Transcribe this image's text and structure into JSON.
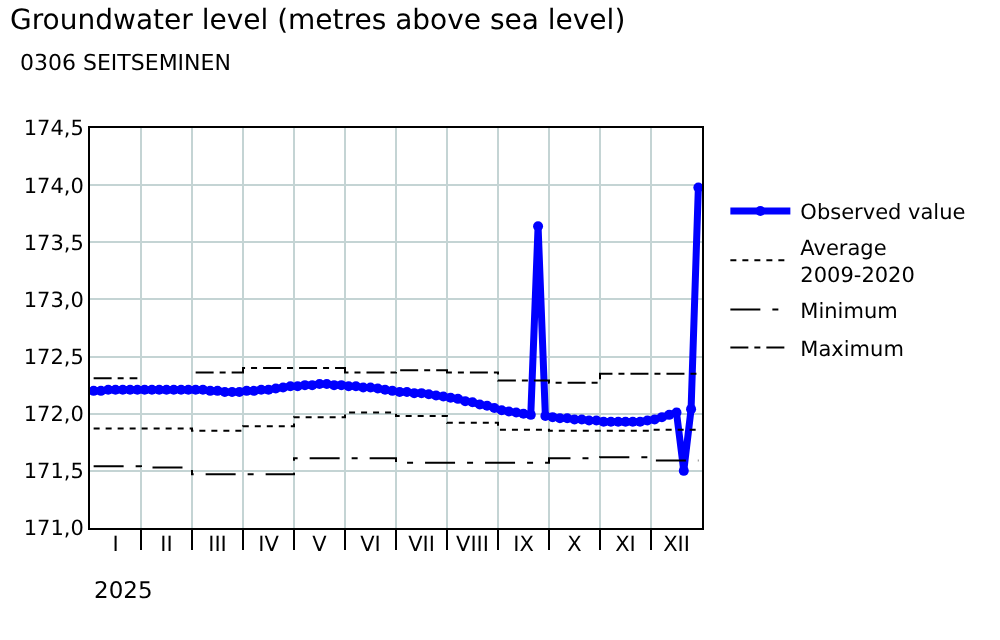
{
  "chart_data": {
    "type": "line",
    "title": "Groundwater level (metres above sea level)",
    "subtitle": "0306 SEITSEMINEN",
    "xlabel": "2025",
    "categories": [
      null,
      null,
      null,
      "I",
      null,
      null,
      null,
      null,
      null,
      null,
      "II",
      null,
      null,
      null,
      null,
      null,
      null,
      "III",
      null,
      null,
      null,
      null,
      null,
      null,
      "IV",
      null,
      null,
      null,
      null,
      null,
      null,
      "V",
      null,
      null,
      null,
      null,
      null,
      null,
      "VI",
      null,
      null,
      null,
      null,
      null,
      null,
      "VII",
      null,
      null,
      null,
      null,
      null,
      null,
      "VIII",
      null,
      null,
      null,
      null,
      null,
      null,
      "IX",
      null,
      null,
      null,
      null,
      null,
      null,
      "X",
      null,
      null,
      null,
      null,
      null,
      null,
      "XI",
      null,
      null,
      null,
      null,
      null,
      null,
      "XII",
      null,
      null,
      null
    ],
    "series": [
      {
        "name": "Observed value",
        "color": "#0000ff",
        "marker": "circle",
        "line_style": "solid",
        "values": [
          172.2,
          172.2,
          172.21,
          172.21,
          172.21,
          172.21,
          172.21,
          172.21,
          172.21,
          172.21,
          172.21,
          172.21,
          172.21,
          172.21,
          172.21,
          172.21,
          172.2,
          172.2,
          172.19,
          172.19,
          172.19,
          172.2,
          172.2,
          172.21,
          172.21,
          172.22,
          172.23,
          172.24,
          172.24,
          172.25,
          172.25,
          172.26,
          172.26,
          172.25,
          172.25,
          172.24,
          172.24,
          172.23,
          172.23,
          172.22,
          172.21,
          172.2,
          172.19,
          172.19,
          172.18,
          172.18,
          172.17,
          172.16,
          172.15,
          172.14,
          172.13,
          172.11,
          172.1,
          172.08,
          172.07,
          172.05,
          172.03,
          172.02,
          172.01,
          172.0,
          171.99,
          173.64,
          171.98,
          171.97,
          171.96,
          171.96,
          171.95,
          171.95,
          171.94,
          171.94,
          171.93,
          171.93,
          171.93,
          171.93,
          171.93,
          171.93,
          171.94,
          171.95,
          171.97,
          171.99,
          172.01,
          171.5,
          172.04,
          173.98
        ]
      },
      {
        "name": "Average 2009-2020",
        "type": "step",
        "color": "#000000",
        "marker": "none",
        "line_style": "dotted",
        "values": [
          171.87,
          171.87,
          171.87,
          171.87,
          171.87,
          171.87,
          171.87,
          171.87,
          171.87,
          171.87,
          171.87,
          171.87,
          171.87,
          171.87,
          171.85,
          171.85,
          171.85,
          171.85,
          171.85,
          171.85,
          171.85,
          171.89,
          171.89,
          171.89,
          171.89,
          171.89,
          171.89,
          171.89,
          171.97,
          171.97,
          171.97,
          171.97,
          171.97,
          171.97,
          171.97,
          172.01,
          172.01,
          172.01,
          172.01,
          172.01,
          172.01,
          172.01,
          171.98,
          171.98,
          171.98,
          171.98,
          171.98,
          171.98,
          171.98,
          171.92,
          171.92,
          171.92,
          171.92,
          171.92,
          171.92,
          171.92,
          171.86,
          171.86,
          171.86,
          171.86,
          171.86,
          171.86,
          171.86,
          171.85,
          171.85,
          171.85,
          171.85,
          171.85,
          171.85,
          171.85,
          171.85,
          171.85,
          171.85,
          171.85,
          171.85,
          171.85,
          171.85,
          171.86,
          171.86,
          171.86,
          171.86,
          171.86,
          171.86,
          171.86
        ]
      },
      {
        "name": "Minimum",
        "type": "step",
        "color": "#000000",
        "marker": "none",
        "line_style": "longdashdot",
        "values": [
          171.54,
          171.54,
          171.54,
          171.54,
          171.54,
          171.54,
          171.54,
          171.53,
          171.53,
          171.53,
          171.53,
          171.53,
          171.53,
          171.53,
          171.47,
          171.47,
          171.47,
          171.47,
          171.47,
          171.47,
          171.47,
          171.47,
          171.47,
          171.47,
          171.47,
          171.47,
          171.47,
          171.47,
          171.61,
          171.61,
          171.61,
          171.61,
          171.61,
          171.61,
          171.61,
          171.61,
          171.61,
          171.61,
          171.61,
          171.61,
          171.61,
          171.61,
          171.57,
          171.57,
          171.57,
          171.57,
          171.57,
          171.57,
          171.57,
          171.57,
          171.57,
          171.57,
          171.57,
          171.57,
          171.57,
          171.57,
          171.57,
          171.57,
          171.57,
          171.57,
          171.57,
          171.57,
          171.57,
          171.61,
          171.61,
          171.61,
          171.61,
          171.61,
          171.61,
          171.61,
          171.62,
          171.62,
          171.62,
          171.62,
          171.62,
          171.62,
          171.62,
          171.59,
          171.59,
          171.59,
          171.59,
          171.59,
          171.59,
          171.59
        ]
      },
      {
        "name": "Maximum",
        "type": "step",
        "color": "#000000",
        "marker": "none",
        "line_style": "dashdot",
        "values": [
          172.31,
          172.31,
          172.31,
          172.31,
          172.31,
          172.31,
          172.31,
          null,
          null,
          null,
          null,
          null,
          null,
          null,
          172.36,
          172.36,
          172.36,
          172.36,
          172.36,
          172.36,
          172.36,
          172.4,
          172.4,
          172.4,
          172.4,
          172.4,
          172.4,
          172.4,
          172.4,
          172.4,
          172.4,
          172.4,
          172.4,
          172.4,
          172.4,
          172.36,
          172.36,
          172.36,
          172.36,
          172.36,
          172.36,
          172.36,
          172.38,
          172.38,
          172.38,
          172.38,
          172.38,
          172.38,
          172.38,
          172.36,
          172.36,
          172.36,
          172.36,
          172.36,
          172.36,
          172.36,
          172.29,
          172.29,
          172.29,
          172.29,
          172.29,
          172.29,
          172.29,
          172.27,
          172.27,
          172.27,
          172.27,
          172.27,
          172.27,
          172.27,
          172.35,
          172.35,
          172.35,
          172.35,
          172.35,
          172.35,
          172.35,
          172.35,
          172.35,
          172.35,
          172.35,
          172.35,
          172.35,
          172.35
        ]
      }
    ],
    "ylim": [
      171.0,
      174.5
    ],
    "yticks": [
      {
        "value": 171.0,
        "label": "171,0"
      },
      {
        "value": 171.5,
        "label": "171,5"
      },
      {
        "value": 172.0,
        "label": "172,0"
      },
      {
        "value": 172.5,
        "label": "172,5"
      },
      {
        "value": 173.0,
        "label": "173,0"
      },
      {
        "value": 173.5,
        "label": "173,5"
      },
      {
        "value": 174.0,
        "label": "174,0"
      },
      {
        "value": 174.5,
        "label": "174,5"
      }
    ],
    "grid": true,
    "legend": "right"
  }
}
